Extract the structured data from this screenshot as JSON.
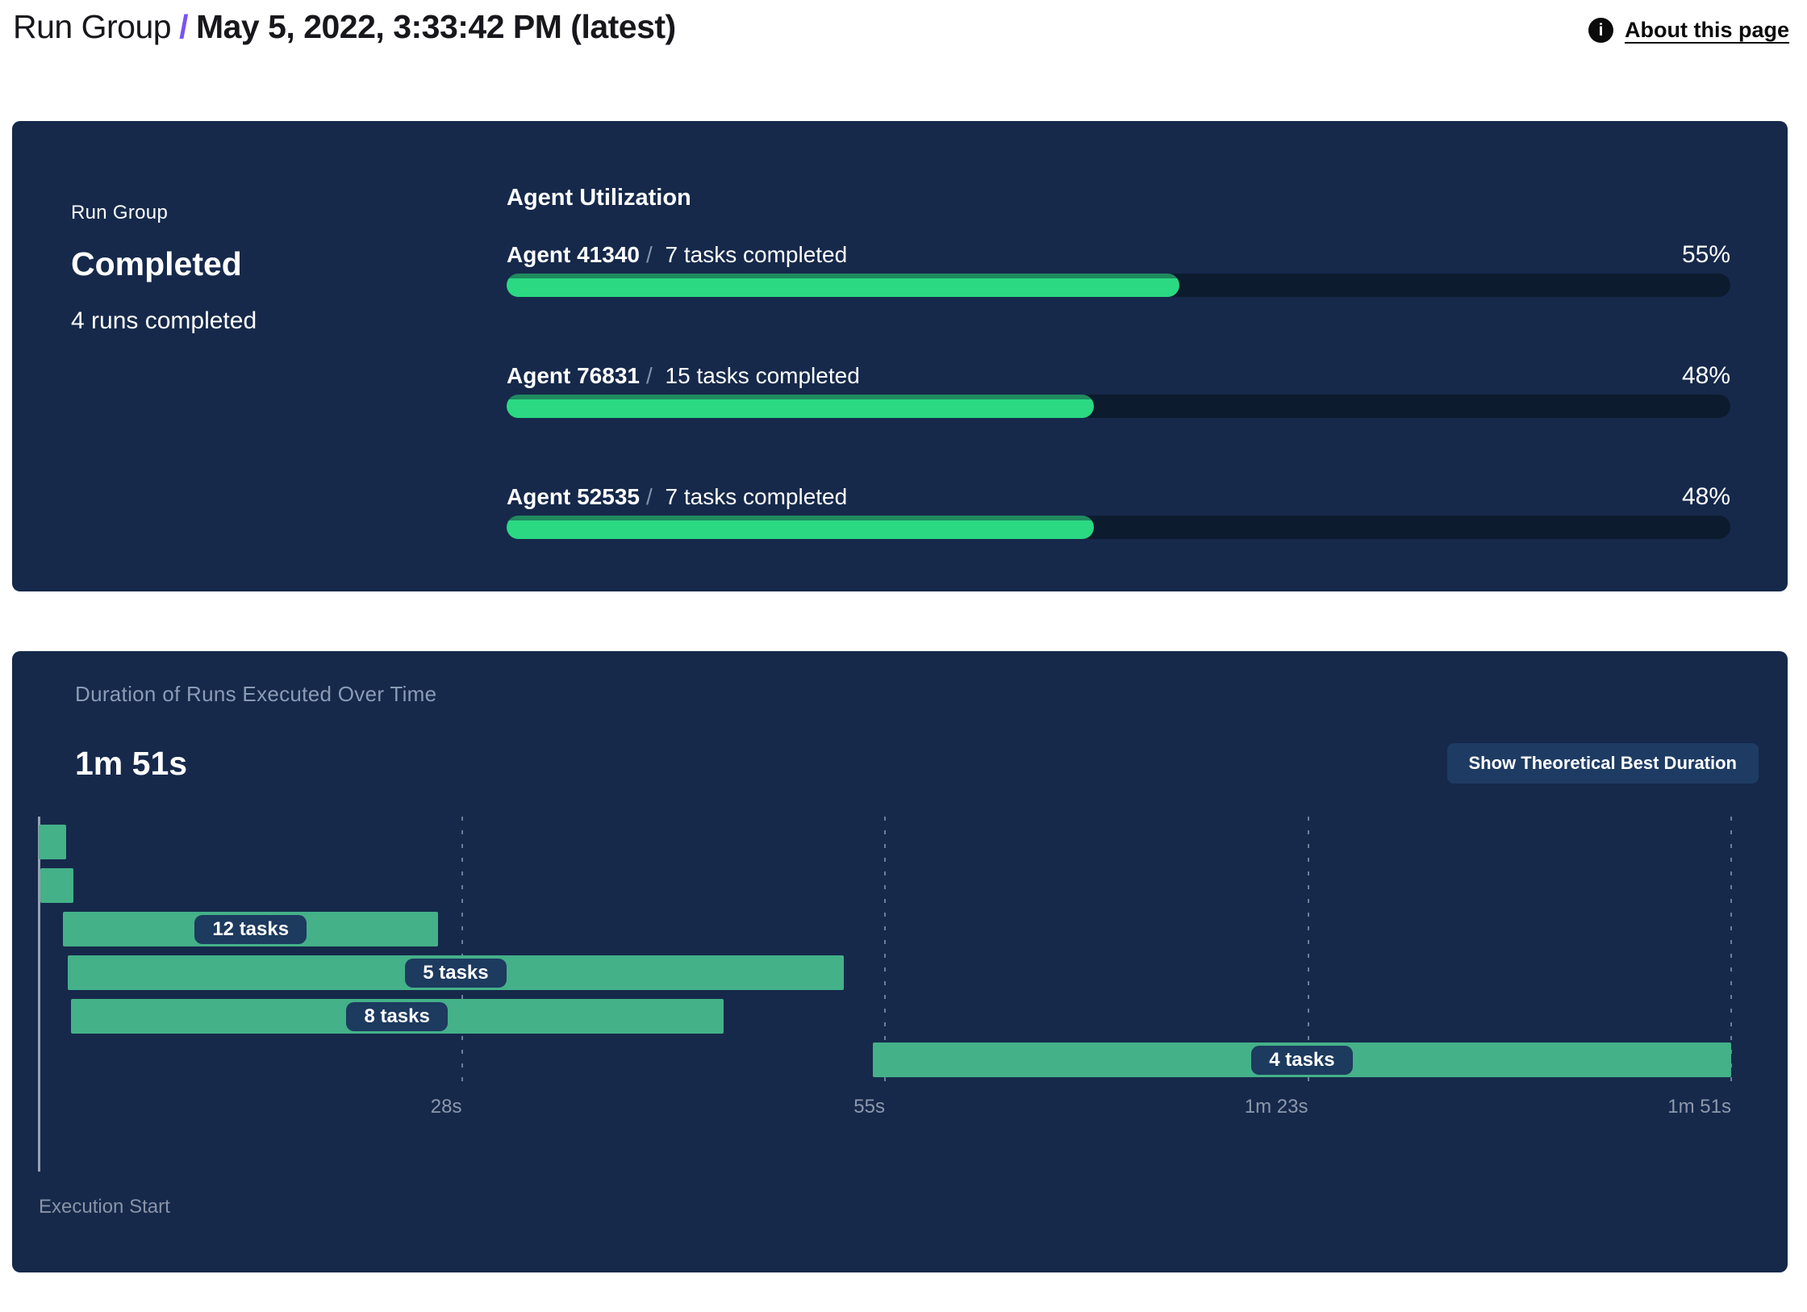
{
  "header": {
    "breadcrumb_root": "Run Group",
    "separator": "/",
    "title": "May 5, 2022, 3:33:42 PM (latest)",
    "about_link_label": "About this page",
    "info_icon_glyph": "i"
  },
  "summary": {
    "label": "Run Group",
    "status": "Completed",
    "runs_completed": "4 runs completed"
  },
  "agent_utilization": {
    "title": "Agent Utilization",
    "separator": "/",
    "agents": [
      {
        "name": "Agent 41340",
        "tasks": "7 tasks completed",
        "utilization_pct": 55
      },
      {
        "name": "Agent 76831",
        "tasks": "15 tasks completed",
        "utilization_pct": 48
      },
      {
        "name": "Agent 52535",
        "tasks": "7 tasks completed",
        "utilization_pct": 48
      }
    ]
  },
  "duration_chart": {
    "title": "Duration of Runs Executed Over Time",
    "total_duration": "1m 51s",
    "button_label": "Show Theoretical Best Duration",
    "execution_start_label": "Execution Start"
  },
  "chart_data": [
    {
      "type": "bar",
      "title": "Agent Utilization",
      "orientation": "horizontal",
      "categories": [
        "Agent 41340",
        "Agent 76831",
        "Agent 52535"
      ],
      "values": [
        55,
        48,
        48
      ],
      "value_unit": "%",
      "annotations": [
        "7 tasks completed",
        "15 tasks completed",
        "7 tasks completed"
      ],
      "xlim": [
        0,
        100
      ],
      "grid": false,
      "legend": "none"
    },
    {
      "type": "bar",
      "subtype": "gantt",
      "title": "Duration of Runs Executed Over Time",
      "total_duration_s": 111,
      "xlabel": "Execution Start",
      "axis_range_s": [
        0,
        111
      ],
      "ticks": [
        {
          "label": "28s",
          "s": 27.75
        },
        {
          "label": "55s",
          "s": 55.5
        },
        {
          "label": "1m 23s",
          "s": 83.25
        },
        {
          "label": "1m 51s",
          "s": 111
        }
      ],
      "runs": [
        {
          "label": "",
          "tasks": null,
          "start_s": 0.0,
          "end_s": 1.8
        },
        {
          "label": "",
          "tasks": null,
          "start_s": 0.1,
          "end_s": 2.3
        },
        {
          "label": "12 tasks",
          "tasks": 12,
          "start_s": 1.6,
          "end_s": 26.2
        },
        {
          "label": "5 tasks",
          "tasks": 5,
          "start_s": 1.9,
          "end_s": 52.8
        },
        {
          "label": "8 tasks",
          "tasks": 8,
          "start_s": 2.1,
          "end_s": 44.9
        },
        {
          "label": "4 tasks",
          "tasks": 4,
          "start_s": 54.7,
          "end_s": 111
        }
      ],
      "grid": "dashed-vertical",
      "legend": "none"
    }
  ],
  "colors": {
    "purple_accent": "#7A52F4",
    "header_ink": "#17171C",
    "icon_black": "#0B0B0B",
    "panel_navy": "#16294B",
    "track_navy": "#0D1B2E",
    "progress_green": "#2BD983",
    "progress_green_shade": "#1F8A5F",
    "gantt_green": "#44B189",
    "pill_navy": "#1D3A5F",
    "button_navy": "#1E3B63",
    "muted_blue": "#8C9BB5",
    "tick_gray": "#8D98AC",
    "axis_line_gray": "#97A1B2"
  }
}
